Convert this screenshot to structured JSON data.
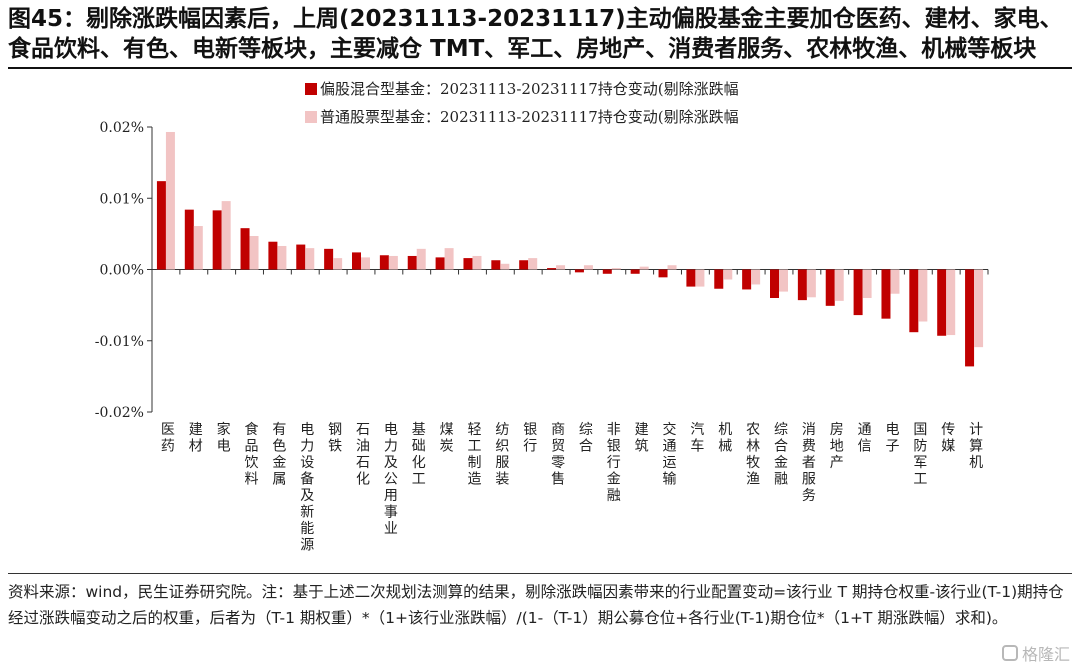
{
  "title": "图45：剔除涨跌幅因素后，上周(20231113-20231117)主动偏股基金主要加仓医药、建材、家电、食品饮料、有色、电新等板块，主要减仓 TMT、军工、房地产、消费者服务、农林牧渔、机械等板块",
  "footnote": "资料来源：wind，民生证券研究院。注：基于上述二次规划法测算的结果，剔除涨跌幅因素带来的行业配置变动=该行业 T 期持仓权重-该行业(T-1)期持仓经过涨跌幅变动之后的权重，后者为（T-1 期权重）*（1+该行业涨跌幅）/(1-（T-1）期公募仓位+各行业(T-1)期仓位*（1+T 期涨跌幅）求和)。",
  "watermark": "格隆汇",
  "colors": {
    "series1": "#c00000",
    "series2": "#f2c4c4"
  },
  "chart_data": {
    "type": "bar",
    "title": "",
    "xlabel": "",
    "ylabel": "",
    "ylim": [
      -0.02,
      0.02
    ],
    "yticks": [
      0.02,
      0.01,
      0.0,
      -0.01,
      -0.02
    ],
    "ytick_labels": [
      "0.02%",
      "0.01%",
      "0.00%",
      "-0.01%",
      "-0.02%"
    ],
    "unit": "%",
    "legend_position": "top-center",
    "categories": [
      "医药",
      "建材",
      "家电",
      "食品饮料",
      "有色金属",
      "电力设备及新能源",
      "钢铁",
      "石油石化",
      "电力及公用事业",
      "基础化工",
      "煤炭",
      "轻工制造",
      "纺织服装",
      "银行",
      "商贸零售",
      "综合",
      "非银行金融",
      "建筑",
      "交通运输",
      "汽车",
      "机械",
      "农林牧渔",
      "综合金融",
      "消费者服务",
      "房地产",
      "通信",
      "电子",
      "国防军工",
      "传媒",
      "计算机"
    ],
    "series": [
      {
        "name": "偏股混合型基金：20231113-20231117持仓变动(剔除涨跌幅",
        "values": [
          0.0124,
          0.0084,
          0.0083,
          0.0058,
          0.0039,
          0.0035,
          0.0029,
          0.0024,
          0.002,
          0.0019,
          0.0017,
          0.0016,
          0.0013,
          0.0013,
          0.0002,
          -0.0004,
          -0.0006,
          -0.0006,
          -0.0011,
          -0.0024,
          -0.0027,
          -0.0028,
          -0.004,
          -0.0043,
          -0.0051,
          -0.0064,
          -0.0069,
          -0.0088,
          -0.0093,
          -0.0136
        ]
      },
      {
        "name": "普通股票型基金：20231113-20231117持仓变动(剔除涨跌幅",
        "values": [
          0.0193,
          0.0061,
          0.0096,
          0.0047,
          0.0033,
          0.003,
          0.0016,
          0.0017,
          0.0019,
          0.0029,
          0.003,
          0.0019,
          0.0008,
          0.0016,
          0.0006,
          0.0006,
          0.0002,
          0.0004,
          0.0006,
          -0.0024,
          -0.0014,
          -0.0021,
          -0.0031,
          -0.0039,
          -0.0044,
          -0.004,
          -0.0034,
          -0.0073,
          -0.0092,
          -0.0109
        ]
      }
    ]
  }
}
